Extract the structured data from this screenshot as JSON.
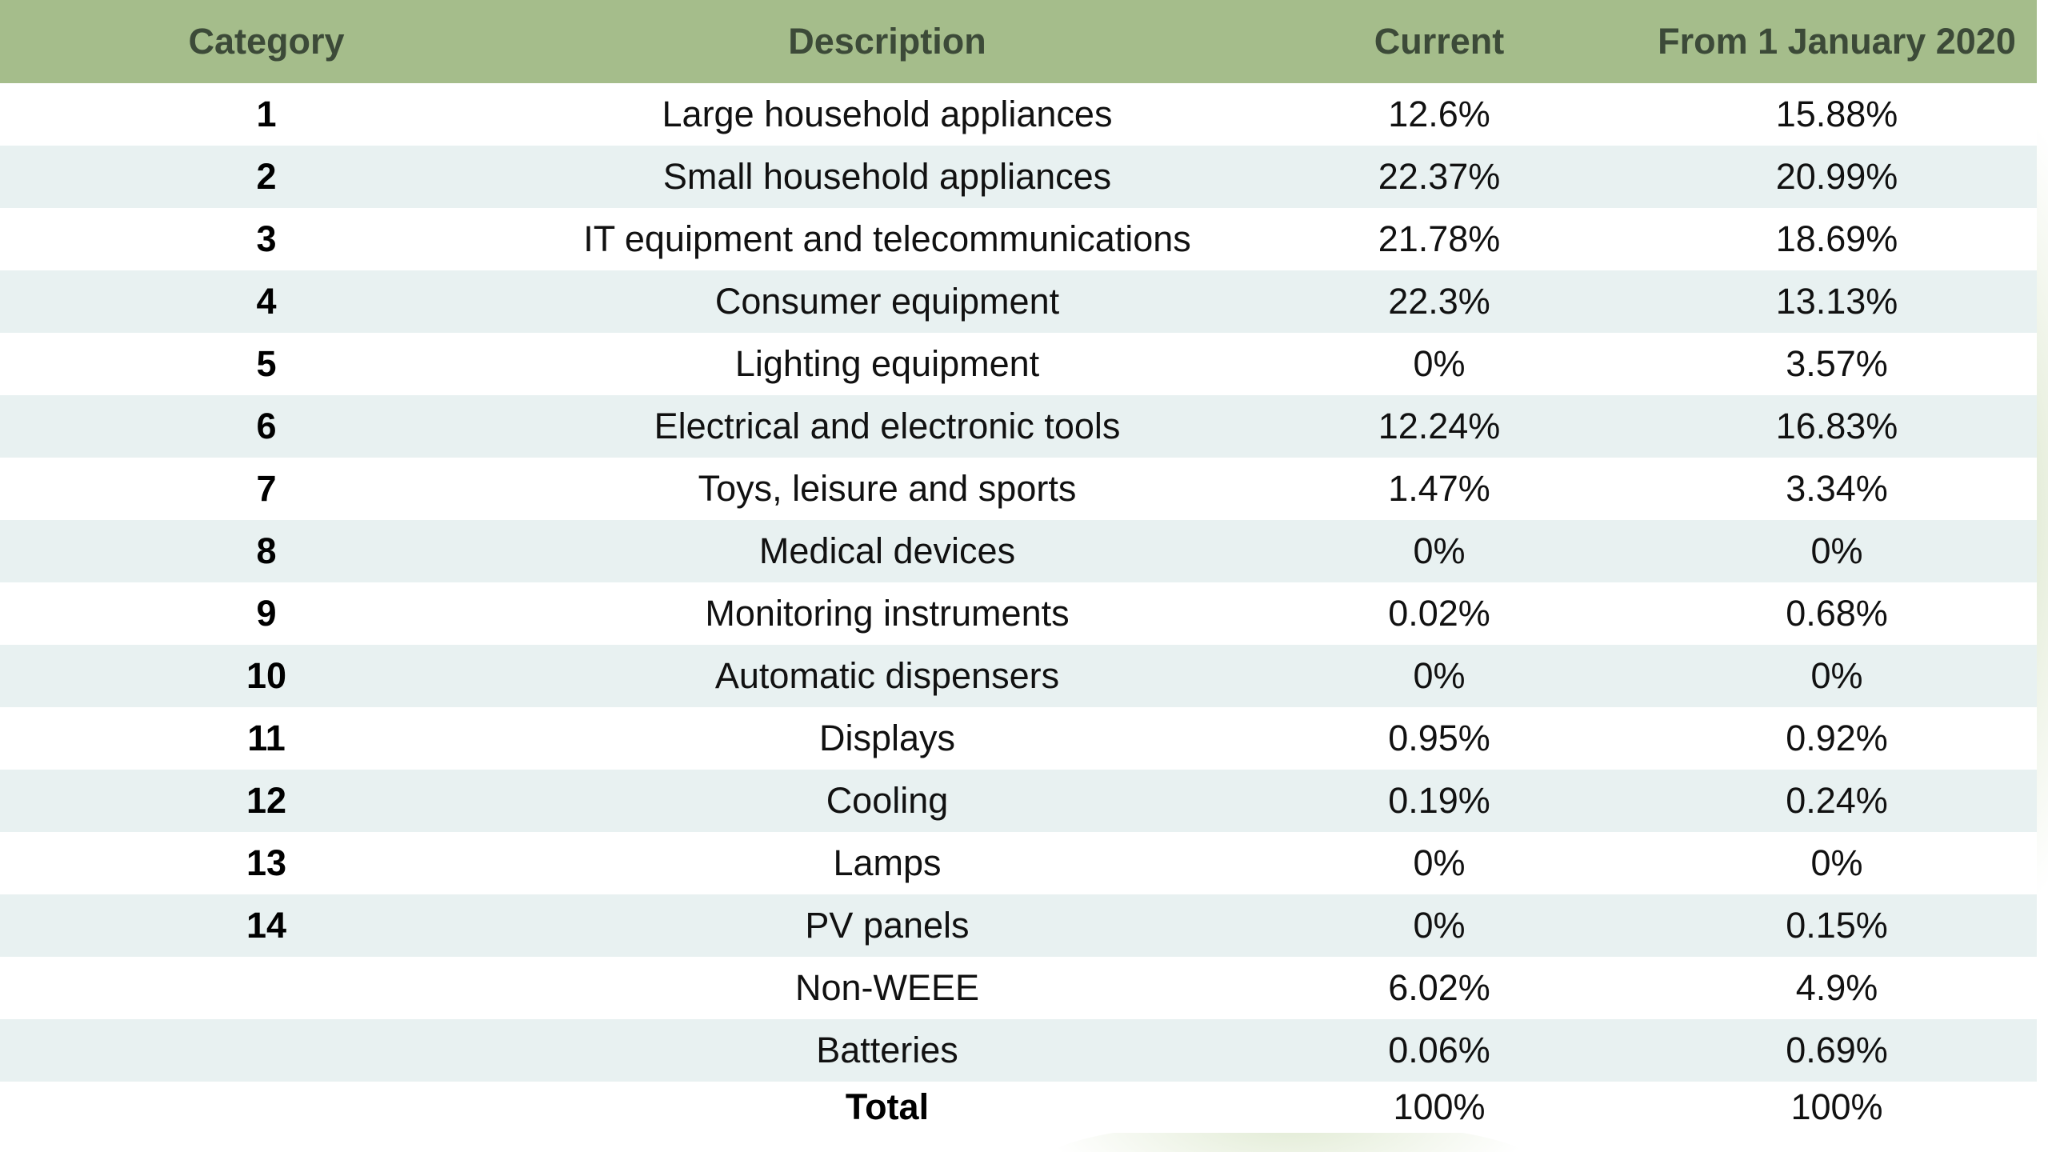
{
  "table": {
    "headers": [
      "Category",
      "Description",
      "Current",
      "From 1 January 2020"
    ],
    "rows": [
      {
        "category": "1",
        "description": "Large household appliances",
        "current": "12.6%",
        "from_2020": "15.88%"
      },
      {
        "category": "2",
        "description": "Small household appliances",
        "current": "22.37%",
        "from_2020": "20.99%"
      },
      {
        "category": "3",
        "description": "IT equipment and telecommunications",
        "current": "21.78%",
        "from_2020": "18.69%"
      },
      {
        "category": "4",
        "description": "Consumer equipment",
        "current": "22.3%",
        "from_2020": "13.13%"
      },
      {
        "category": "5",
        "description": "Lighting equipment",
        "current": "0%",
        "from_2020": "3.57%"
      },
      {
        "category": "6",
        "description": "Electrical and electronic tools",
        "current": "12.24%",
        "from_2020": "16.83%"
      },
      {
        "category": "7",
        "description": "Toys, leisure and sports",
        "current": "1.47%",
        "from_2020": "3.34%"
      },
      {
        "category": "8",
        "description": "Medical devices",
        "current": "0%",
        "from_2020": "0%"
      },
      {
        "category": "9",
        "description": "Monitoring instruments",
        "current": "0.02%",
        "from_2020": "0.68%"
      },
      {
        "category": "10",
        "description": "Automatic dispensers",
        "current": "0%",
        "from_2020": "0%"
      },
      {
        "category": "11",
        "description": "Displays",
        "current": "0.95%",
        "from_2020": "0.92%"
      },
      {
        "category": "12",
        "description": "Cooling",
        "current": "0.19%",
        "from_2020": "0.24%"
      },
      {
        "category": "13",
        "description": "Lamps",
        "current": "0%",
        "from_2020": "0%"
      },
      {
        "category": "14",
        "description": "PV panels",
        "current": "0%",
        "from_2020": "0.15%"
      },
      {
        "category": "",
        "description": "Non-WEEE",
        "current": "6.02%",
        "from_2020": "4.9%"
      },
      {
        "category": "",
        "description": "Batteries",
        "current": "0.06%",
        "from_2020": "0.69%"
      }
    ],
    "total": {
      "label": "Total",
      "current": "100%",
      "from_2020": "100%"
    }
  },
  "colors": {
    "header_bg": "#a5bd8b",
    "header_text": "#3c4a38",
    "stripe": "#e8f1f1"
  }
}
